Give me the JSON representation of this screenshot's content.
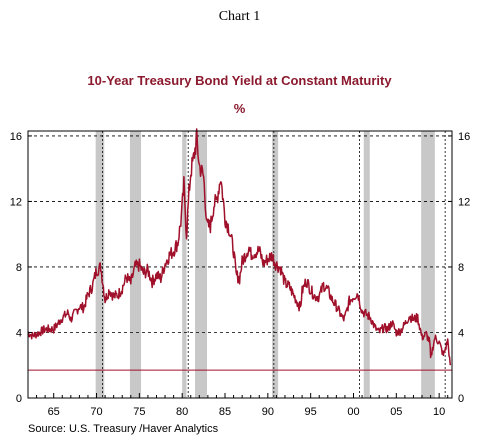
{
  "header": {
    "chart_label": "Chart 1"
  },
  "chart_data": {
    "type": "line",
    "title": "10-Year Treasury Bond Yield at Constant Maturity",
    "subtitle": "%",
    "source": "Source:  U.S. Treasury /Haver Analytics",
    "xlim": [
      1962,
      2011.5
    ],
    "ylim": [
      0,
      16.3
    ],
    "x_ticks": [
      1965,
      1970,
      1975,
      1980,
      1985,
      1990,
      1995,
      2000,
      2005,
      2010
    ],
    "x_tick_labels": [
      "65",
      "70",
      "75",
      "80",
      "85",
      "90",
      "95",
      "00",
      "05",
      "10"
    ],
    "y_ticks": [
      0,
      4,
      8,
      12,
      16
    ],
    "y_tick_labels": [
      "0",
      "4",
      "8",
      "12",
      "16"
    ],
    "grid": "horizontal dashed",
    "recessions": [
      [
        1969.9,
        1970.9
      ],
      [
        1973.9,
        1975.2
      ],
      [
        1980.0,
        1980.5
      ],
      [
        1981.5,
        1982.9
      ],
      [
        1990.5,
        1991.2
      ],
      [
        2001.2,
        2001.9
      ],
      [
        2007.9,
        2009.5
      ]
    ],
    "vertical_markers": [
      1970.7,
      1980.7,
      1990.7,
      2000.7,
      2010.7
    ],
    "reference_line": 1.7,
    "series": [
      {
        "color": "#a0102a",
        "x": [
          1962,
          1962.5,
          1963,
          1964,
          1965,
          1966,
          1966.7,
          1967,
          1968,
          1968.5,
          1969,
          1969.5,
          1970,
          1970.5,
          1970.8,
          1971,
          1971.5,
          1972,
          1972.5,
          1973,
          1973.5,
          1974,
          1974.5,
          1975,
          1975.5,
          1976,
          1976.5,
          1977,
          1977.5,
          1978,
          1978.5,
          1979,
          1979.5,
          1979.9,
          1980.2,
          1980.5,
          1980.8,
          1981,
          1981.3,
          1981.7,
          1982,
          1982.5,
          1982.9,
          1983.3,
          1983.7,
          1984,
          1984.5,
          1985,
          1985.5,
          1986,
          1986.3,
          1986.7,
          1987,
          1987.5,
          1987.8,
          1988,
          1988.5,
          1989,
          1989.5,
          1990,
          1990.5,
          1990.9,
          1991.5,
          1992,
          1992.5,
          1993,
          1993.8,
          1994,
          1994.5,
          1995,
          1995.5,
          1996,
          1996.5,
          1997,
          1997.5,
          1998,
          1998.8,
          1999,
          1999.5,
          2000,
          2000.5,
          2001,
          2001.5,
          2002,
          2002.5,
          2003,
          2003.5,
          2004,
          2004.5,
          2005,
          2005.5,
          2006,
          2006.5,
          2007,
          2007.5,
          2008,
          2008.5,
          2008.9,
          2009,
          2009.5,
          2010,
          2010.5,
          2011,
          2011.3
        ],
        "y": [
          4.0,
          3.8,
          3.9,
          4.2,
          4.2,
          4.9,
          5.2,
          4.8,
          5.6,
          5.5,
          6.3,
          6.8,
          7.8,
          8.0,
          6.8,
          6.0,
          6.6,
          6.2,
          6.3,
          6.7,
          7.4,
          7.0,
          8.0,
          8.1,
          7.6,
          7.8,
          7.1,
          7.5,
          7.3,
          8.2,
          8.7,
          9.0,
          9.5,
          11.0,
          13.0,
          10.0,
          12.5,
          13.8,
          14.5,
          15.8,
          14.2,
          13.5,
          10.5,
          10.5,
          11.8,
          12.0,
          13.5,
          11.0,
          10.3,
          9.0,
          7.5,
          7.3,
          8.3,
          8.9,
          9.2,
          8.8,
          8.9,
          9.0,
          8.2,
          8.5,
          8.7,
          8.2,
          7.9,
          7.0,
          6.8,
          6.3,
          5.5,
          6.5,
          7.2,
          6.6,
          6.2,
          6.2,
          6.9,
          6.6,
          6.0,
          5.6,
          4.8,
          4.9,
          5.9,
          6.2,
          6.4,
          5.3,
          5.1,
          4.9,
          4.3,
          4.0,
          4.3,
          4.2,
          4.6,
          4.0,
          4.1,
          4.5,
          5.0,
          4.8,
          4.9,
          3.7,
          3.9,
          3.4,
          2.4,
          3.7,
          3.4,
          2.6,
          3.5,
          2.0
        ]
      }
    ]
  }
}
